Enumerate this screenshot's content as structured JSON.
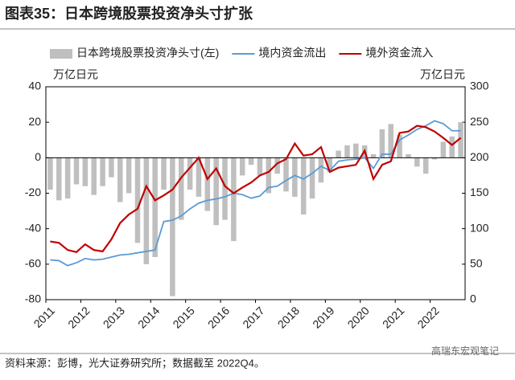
{
  "chart_data": {
    "type": "combo",
    "title": "图表35：日本跨境股票投资净头寸扩张",
    "y_unit": "万亿日元",
    "y2_unit": "万亿日元",
    "source": "资料来源：彭博，光大证券研究所；数据截至 2022Q4。",
    "watermark": "高瑞东宏观笔记",
    "categories": [
      "2011",
      null,
      null,
      null,
      "2012",
      null,
      null,
      null,
      "2013",
      null,
      null,
      null,
      "2014",
      null,
      null,
      null,
      "2015",
      null,
      null,
      null,
      "2016",
      null,
      null,
      null,
      "2017",
      null,
      null,
      null,
      "2018",
      null,
      null,
      null,
      "2019",
      null,
      null,
      null,
      "2020",
      null,
      null,
      null,
      "2021",
      null,
      null,
      null,
      "2022",
      null,
      null,
      null
    ],
    "ylim": [
      -80,
      40
    ],
    "yticks": [
      -80,
      -60,
      -40,
      -20,
      0,
      20,
      40
    ],
    "y2lim": [
      0,
      300
    ],
    "y2ticks": [
      0,
      50,
      100,
      150,
      200,
      250,
      300
    ],
    "series": [
      {
        "name": "日本跨境股票投资净头寸(左)",
        "type": "bar",
        "color": "#bfbfbf",
        "axis": "y",
        "values": [
          -18,
          -24,
          -23,
          -15,
          -16,
          -21,
          -16,
          -11,
          -25,
          -20,
          -48,
          -60,
          -56,
          -18,
          -78,
          -35,
          -18,
          -22,
          -30,
          -38,
          -35,
          -47,
          -10,
          -4,
          -10,
          -20,
          -9,
          -19,
          -22,
          -32,
          -23,
          -14,
          -8,
          4,
          7,
          8,
          7,
          2,
          16,
          19,
          13,
          2,
          -5,
          -9,
          -1,
          9,
          12,
          20
        ]
      },
      {
        "name": "境内资金流出",
        "type": "line",
        "color": "#5b9bd5",
        "axis": "y2",
        "values": [
          56,
          55,
          48,
          52,
          58,
          56,
          57,
          60,
          63,
          64,
          66,
          68,
          70,
          110,
          112,
          118,
          128,
          136,
          140,
          142,
          145,
          150,
          148,
          143,
          146,
          158,
          160,
          168,
          175,
          170,
          178,
          188,
          182,
          195,
          197,
          198,
          200,
          185,
          205,
          205,
          225,
          232,
          240,
          245,
          252,
          248,
          238,
          238
        ]
      },
      {
        "name": "境外资金流入",
        "type": "line",
        "color": "#c00000",
        "axis": "y2",
        "values": [
          82,
          80,
          70,
          67,
          78,
          70,
          68,
          85,
          108,
          120,
          128,
          160,
          140,
          147,
          155,
          172,
          186,
          200,
          170,
          185,
          160,
          150,
          158,
          165,
          175,
          180,
          192,
          198,
          220,
          203,
          205,
          215,
          180,
          186,
          188,
          190,
          210,
          170,
          190,
          195,
          235,
          237,
          245,
          243,
          237,
          228,
          218,
          228
        ]
      }
    ]
  }
}
